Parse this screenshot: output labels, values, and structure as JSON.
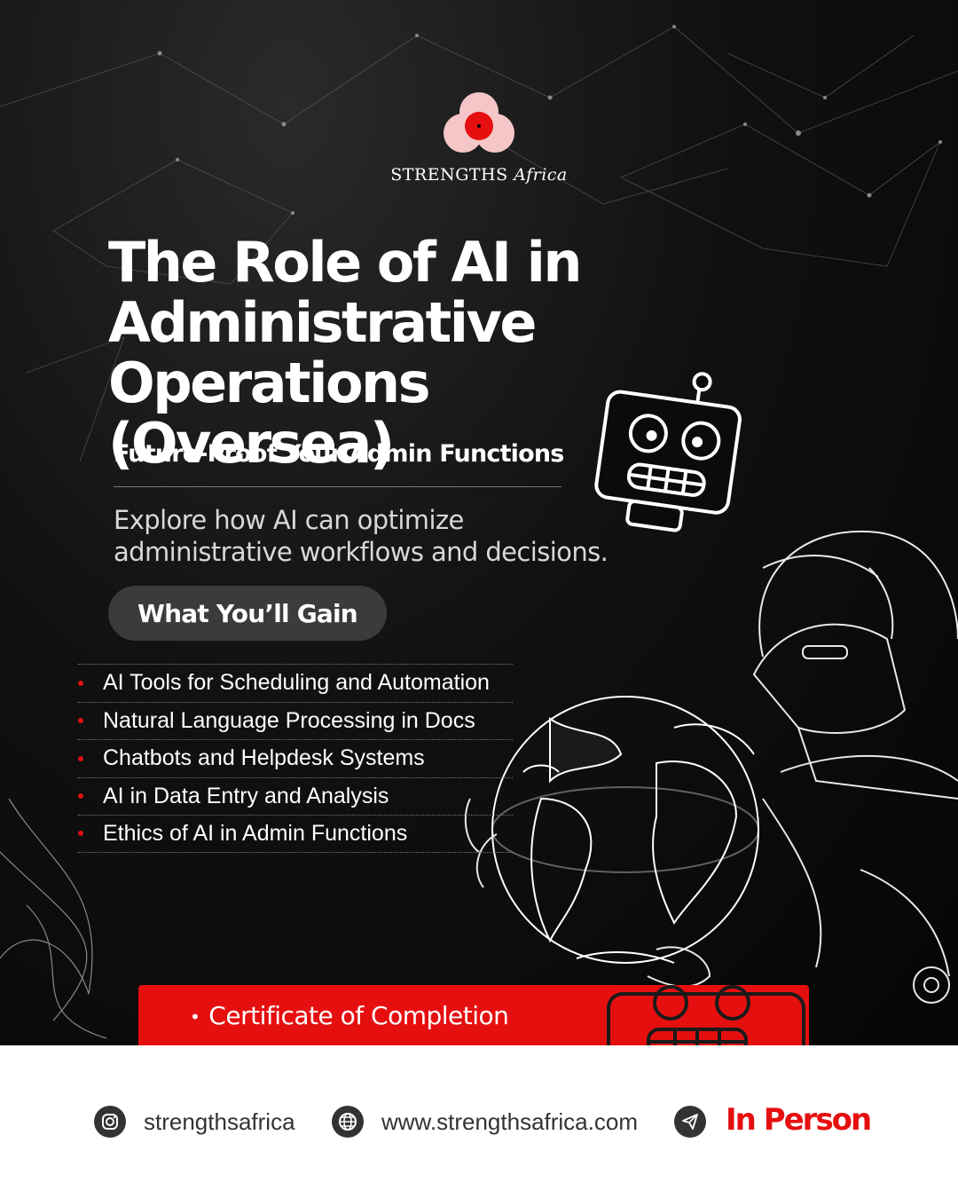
{
  "brand": {
    "name_main": "STRENGTHS",
    "name_italic": "Africa",
    "accent": "#e60f10",
    "logo_pink": "#f5c6c8"
  },
  "title": {
    "line1": "The Role of AI in",
    "line2": "Administrative Operations",
    "line3": "(Oversea)"
  },
  "subtitle": "Future-Proof Your Admin Functions",
  "description": {
    "line1": "Explore how AI can optimize",
    "line2": "administrative workflows and decisions."
  },
  "gain_heading": "What You’ll Gain",
  "gains": [
    "AI Tools for Scheduling and Automation",
    "Natural Language Processing in Docs",
    "Chatbots and Helpdesk Systems",
    "AI in Data Entry and Analysis",
    "Ethics of AI in Admin Functions"
  ],
  "certificate": {
    "bullet": "•",
    "label": "Certificate of Completion"
  },
  "footer": {
    "instagram": {
      "icon": "instagram-icon",
      "text": "strengthsafrica"
    },
    "website": {
      "icon": "globe-icon",
      "text": "www.strengthsafrica.com"
    },
    "mode": {
      "icon": "send-icon",
      "text": "In Person"
    }
  }
}
